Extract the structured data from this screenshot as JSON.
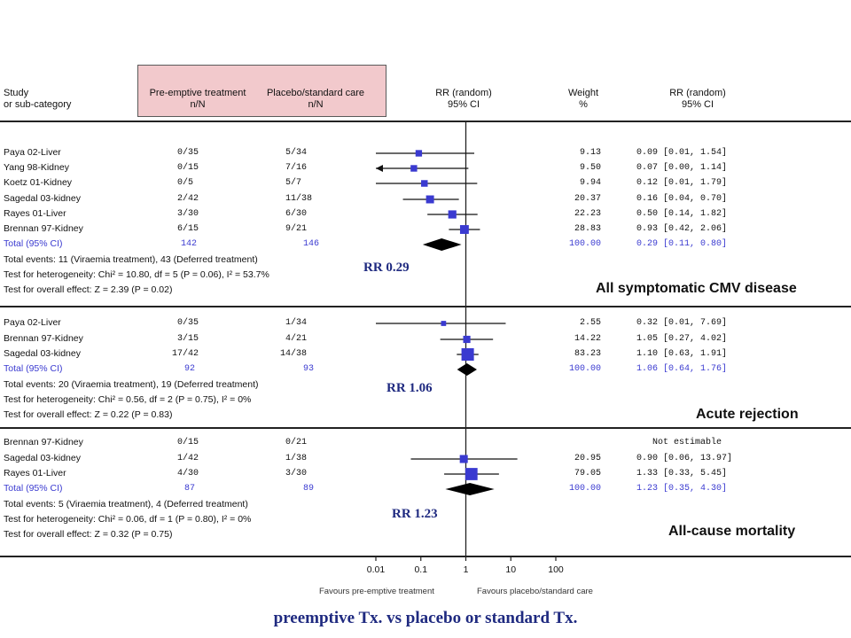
{
  "header": {
    "study_line1": "Study",
    "study_line2": "or sub-category",
    "treat_line1": "Pre-emptive treatment",
    "treat_line2": "n/N",
    "ctrl_line1": "Placebo/standard care",
    "ctrl_line2": "n/N",
    "rr_line1": "RR (random)",
    "rr_line2": "95% CI",
    "weight_line1": "Weight",
    "weight_line2": "%",
    "rrval_line1": "RR (random)",
    "rrval_line2": "95% CI"
  },
  "chart_data": {
    "type": "forest",
    "x_scale": "log",
    "xlim": [
      0.01,
      100
    ],
    "x_ticks": [
      "0.01",
      "0.1",
      "1",
      "10",
      "100"
    ],
    "xlabel_left": "Favours pre-emptive treatment",
    "xlabel_right": "Favours placebo/standard care",
    "groups": [
      {
        "section_title": "All symptomatic CMV disease",
        "callout": "RR  0.29",
        "studies": [
          {
            "name": "Paya 02-Liver",
            "treat": "0/35",
            "ctrl": "5/34",
            "weight": "9.13",
            "ci_text": "0.09 [0.01, 1.54]",
            "rr": 0.09,
            "lo": 0.01,
            "hi": 1.54
          },
          {
            "name": "Yang 98-Kidney",
            "treat": "0/15",
            "ctrl": "7/16",
            "weight": "9.50",
            "ci_text": "0.07 [0.00, 1.14]",
            "rr": 0.07,
            "lo": 0.001,
            "hi": 1.14
          },
          {
            "name": "Koetz 01-Kidney",
            "treat": "0/5",
            "ctrl": "5/7",
            "weight": "9.94",
            "ci_text": "0.12 [0.01, 1.79]",
            "rr": 0.12,
            "lo": 0.01,
            "hi": 1.79
          },
          {
            "name": "Sagedal 03-kidney",
            "treat": "2/42",
            "ctrl": "11/38",
            "weight": "20.37",
            "ci_text": "0.16 [0.04, 0.70]",
            "rr": 0.16,
            "lo": 0.04,
            "hi": 0.7
          },
          {
            "name": "Rayes 01-Liver",
            "treat": "3/30",
            "ctrl": "6/30",
            "weight": "22.23",
            "ci_text": "0.50 [0.14, 1.82]",
            "rr": 0.5,
            "lo": 0.14,
            "hi": 1.82
          },
          {
            "name": "Brennan 97-Kidney",
            "treat": "6/15",
            "ctrl": "9/21",
            "weight": "28.83",
            "ci_text": "0.93 [0.42, 2.06]",
            "rr": 0.93,
            "lo": 0.42,
            "hi": 2.06
          }
        ],
        "total": {
          "label": "Total (95% CI)",
          "treat": "142",
          "ctrl": "146",
          "weight": "100.00",
          "ci_text": "0.29 [0.11, 0.80]",
          "rr": 0.29,
          "lo": 0.11,
          "hi": 0.8
        },
        "events": "Total events: 11 (Viraemia treatment), 43 (Deferred treatment)",
        "heterogeneity": "Test for heterogeneity: Chi² = 10.80, df = 5 (P = 0.06), I² = 53.7%",
        "overall": "Test for overall effect: Z = 2.39 (P = 0.02)"
      },
      {
        "section_title": "Acute rejection",
        "callout": "RR 1.06",
        "studies": [
          {
            "name": "Paya 02-Liver",
            "treat": "0/35",
            "ctrl": "1/34",
            "weight": "2.55",
            "ci_text": "0.32 [0.01, 7.69]",
            "rr": 0.32,
            "lo": 0.01,
            "hi": 7.69
          },
          {
            "name": "Brennan 97-Kidney",
            "treat": "3/15",
            "ctrl": "4/21",
            "weight": "14.22",
            "ci_text": "1.05 [0.27, 4.02]",
            "rr": 1.05,
            "lo": 0.27,
            "hi": 4.02
          },
          {
            "name": "Sagedal 03-kidney",
            "treat": "17/42",
            "ctrl": "14/38",
            "weight": "83.23",
            "ci_text": "1.10 [0.63, 1.91]",
            "rr": 1.1,
            "lo": 0.63,
            "hi": 1.91
          }
        ],
        "total": {
          "label": "Total (95% CI)",
          "treat": "92",
          "ctrl": "93",
          "weight": "100.00",
          "ci_text": "1.06 [0.64, 1.76]",
          "rr": 1.06,
          "lo": 0.64,
          "hi": 1.76
        },
        "events": "Total events: 20 (Viraemia treatment), 19 (Deferred treatment)",
        "heterogeneity": "Test for heterogeneity: Chi² = 0.56, df = 2 (P = 0.75), I² = 0%",
        "overall": "Test for overall effect: Z = 0.22 (P = 0.83)"
      },
      {
        "section_title": "All-cause mortality",
        "callout": "RR 1.23",
        "studies": [
          {
            "name": "Brennan 97-Kidney",
            "treat": "0/15",
            "ctrl": "0/21",
            "weight": "",
            "ci_text": "Not estimable",
            "rr": null,
            "lo": null,
            "hi": null
          },
          {
            "name": "Sagedal 03-kidney",
            "treat": "1/42",
            "ctrl": "1/38",
            "weight": "20.95",
            "ci_text": "0.90 [0.06, 13.97]",
            "rr": 0.9,
            "lo": 0.06,
            "hi": 13.97
          },
          {
            "name": "Rayes 01-Liver",
            "treat": "4/30",
            "ctrl": "3/30",
            "weight": "79.05",
            "ci_text": "1.33 [0.33, 5.45]",
            "rr": 1.33,
            "lo": 0.33,
            "hi": 5.45
          }
        ],
        "total": {
          "label": "Total (95% CI)",
          "treat": "87",
          "ctrl": "89",
          "weight": "100.00",
          "ci_text": "1.23 [0.35, 4.30]",
          "rr": 1.23,
          "lo": 0.35,
          "hi": 4.3
        },
        "events": "Total events: 5 (Viraemia treatment), 4 (Deferred treatment)",
        "heterogeneity": "Test for heterogeneity: Chi² = 0.06, df = 1 (P = 0.80), I² = 0%",
        "overall": "Test for overall effect: Z = 0.32 (P = 0.75)"
      }
    ],
    "colors": {
      "marker": "#3a3ad0",
      "diamond": "#000000",
      "total_text": "#3a3ad0",
      "callout": "#1f2a80"
    }
  },
  "caption": "preemptive Tx.   vs   placebo or standard Tx."
}
